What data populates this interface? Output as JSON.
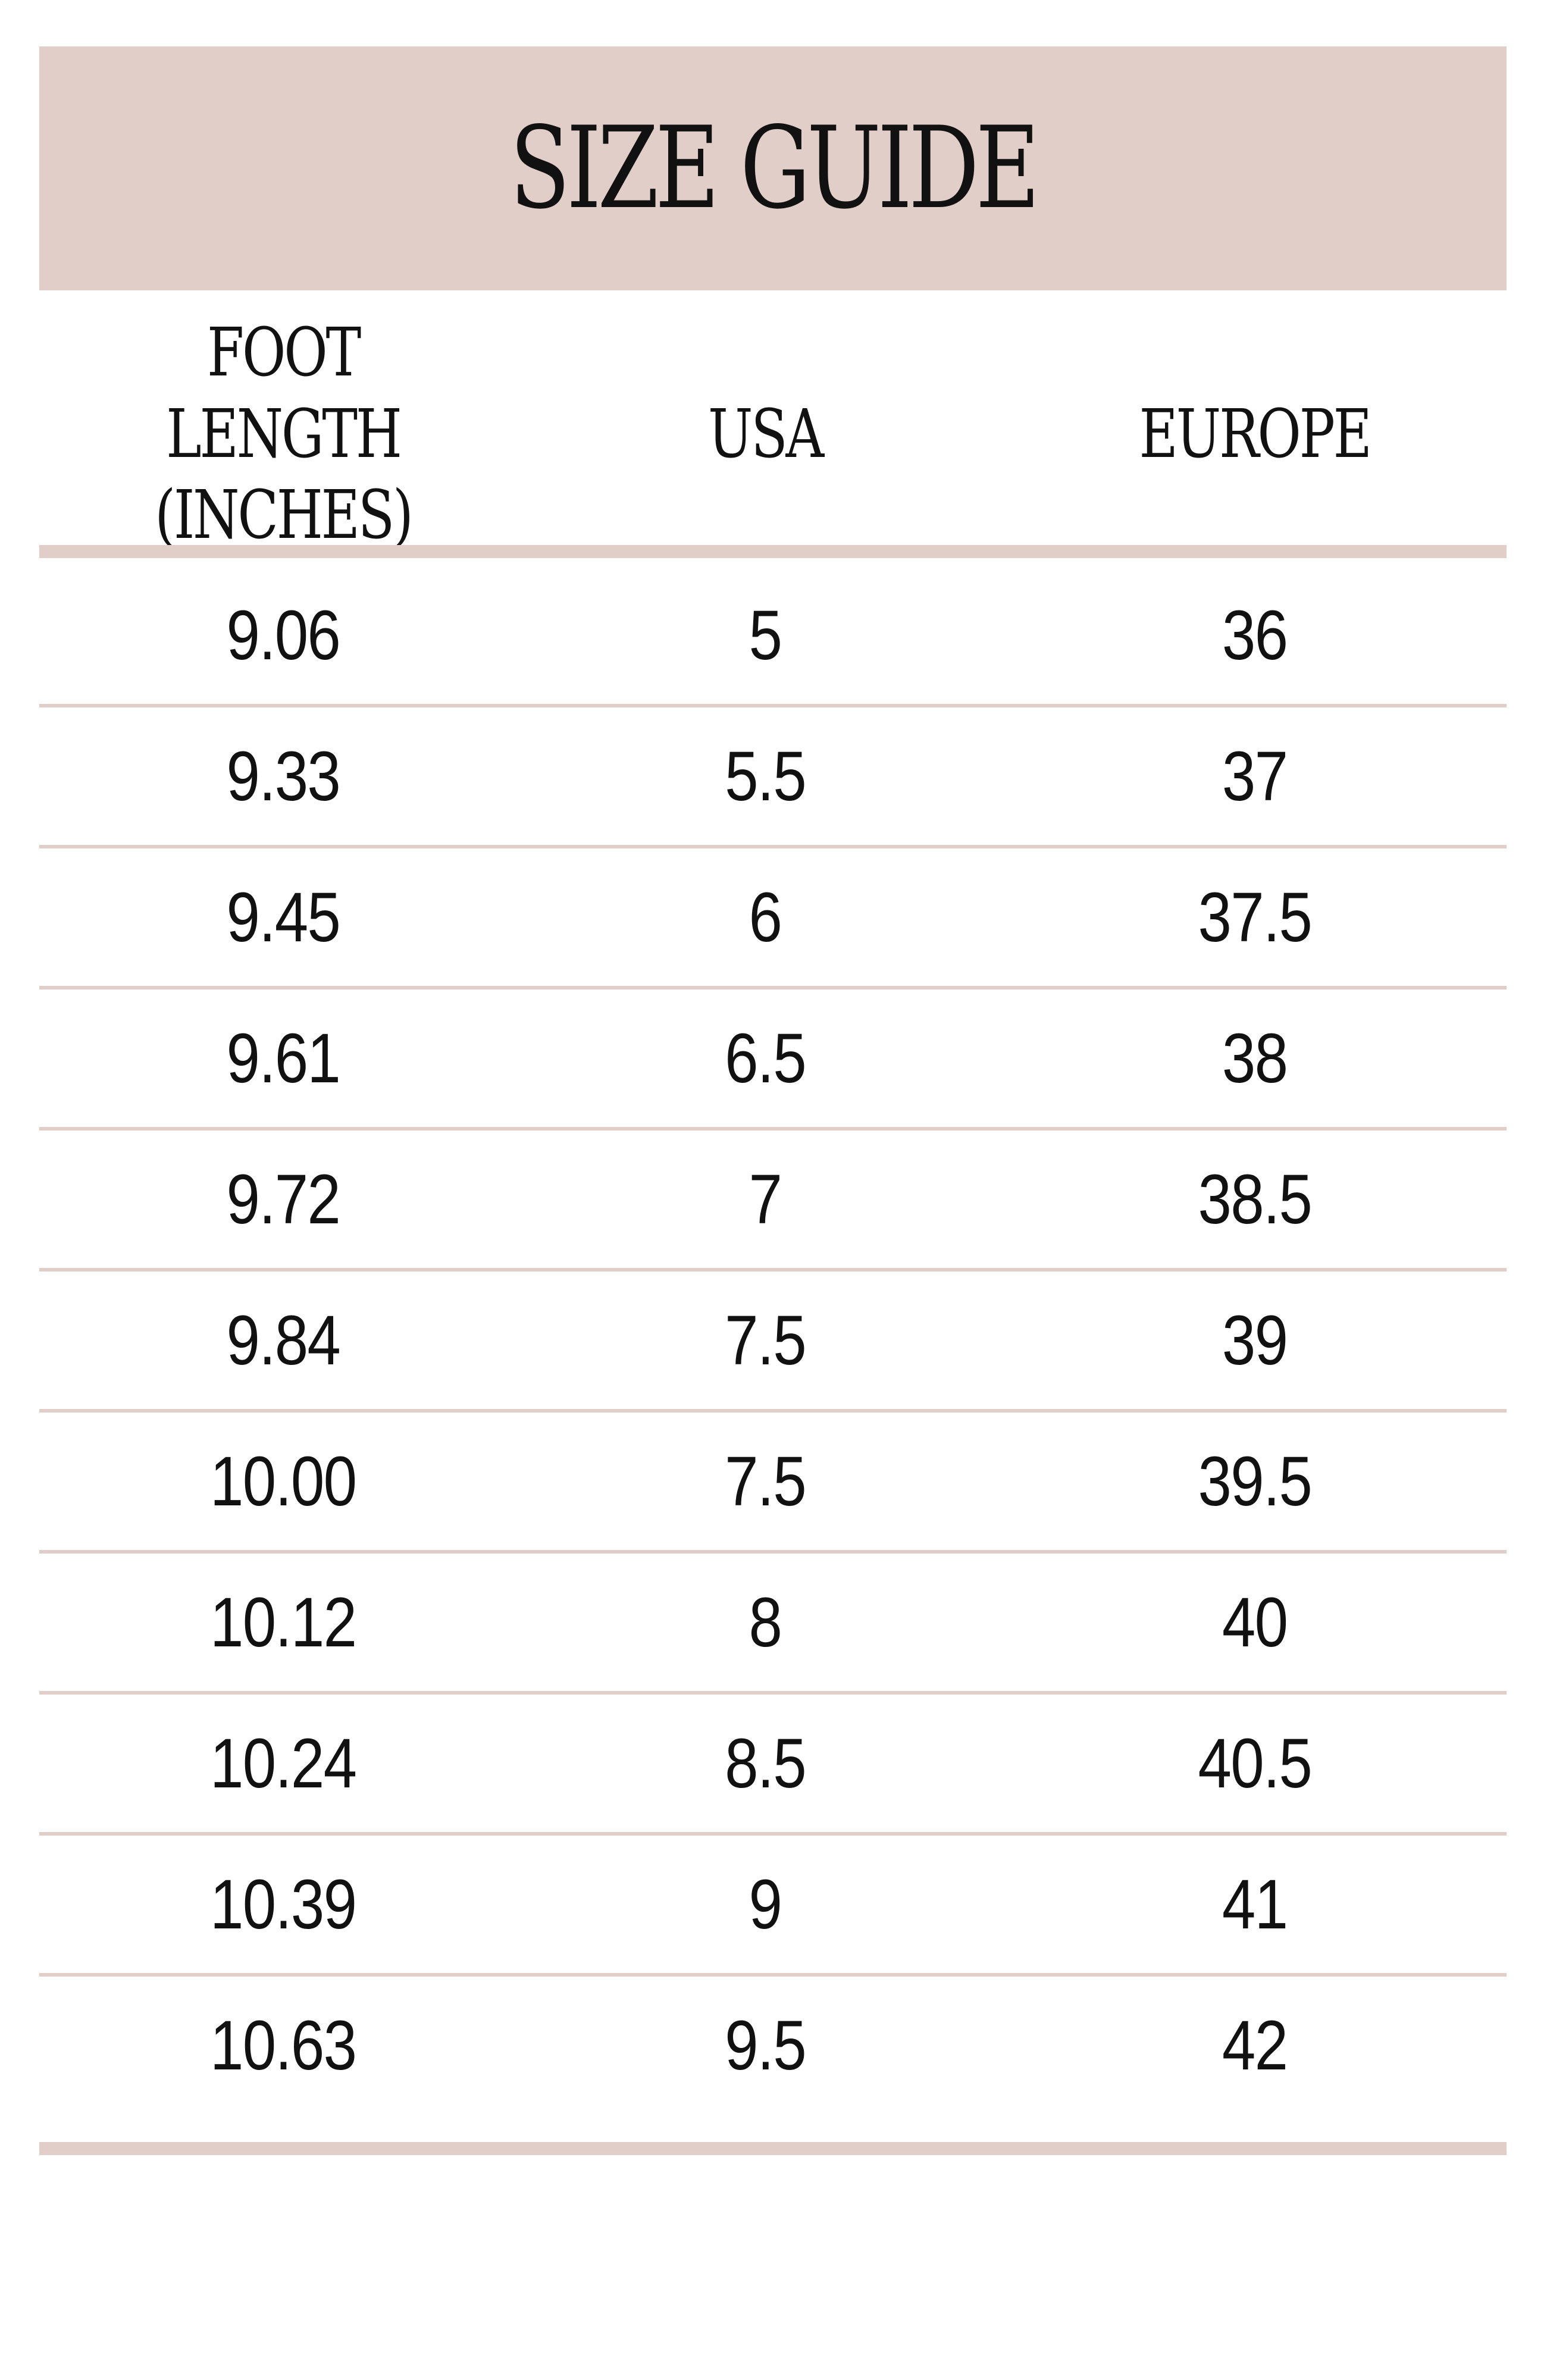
{
  "title": "SIZE GUIDE",
  "columns": {
    "foot_length": "FOOT LENGTH\n(INCHES)",
    "usa": "USA",
    "europe": "EUROPE"
  },
  "rows": [
    {
      "foot_length": "9.06",
      "usa": "5",
      "europe": "36"
    },
    {
      "foot_length": "9.33",
      "usa": "5.5",
      "europe": "37"
    },
    {
      "foot_length": "9.45",
      "usa": "6",
      "europe": "37.5"
    },
    {
      "foot_length": "9.61",
      "usa": "6.5",
      "europe": "38"
    },
    {
      "foot_length": "9.72",
      "usa": "7",
      "europe": "38.5"
    },
    {
      "foot_length": "9.84",
      "usa": "7.5",
      "europe": "39"
    },
    {
      "foot_length": "10.00",
      "usa": "7.5",
      "europe": "39.5"
    },
    {
      "foot_length": "10.12",
      "usa": "8",
      "europe": "40"
    },
    {
      "foot_length": "10.24",
      "usa": "8.5",
      "europe": "40.5"
    },
    {
      "foot_length": "10.39",
      "usa": "9",
      "europe": "41"
    },
    {
      "foot_length": "10.63",
      "usa": "9.5",
      "europe": "42"
    }
  ],
  "colors": {
    "accent": "#e2cec8",
    "text": "#111111",
    "background": "#ffffff"
  }
}
